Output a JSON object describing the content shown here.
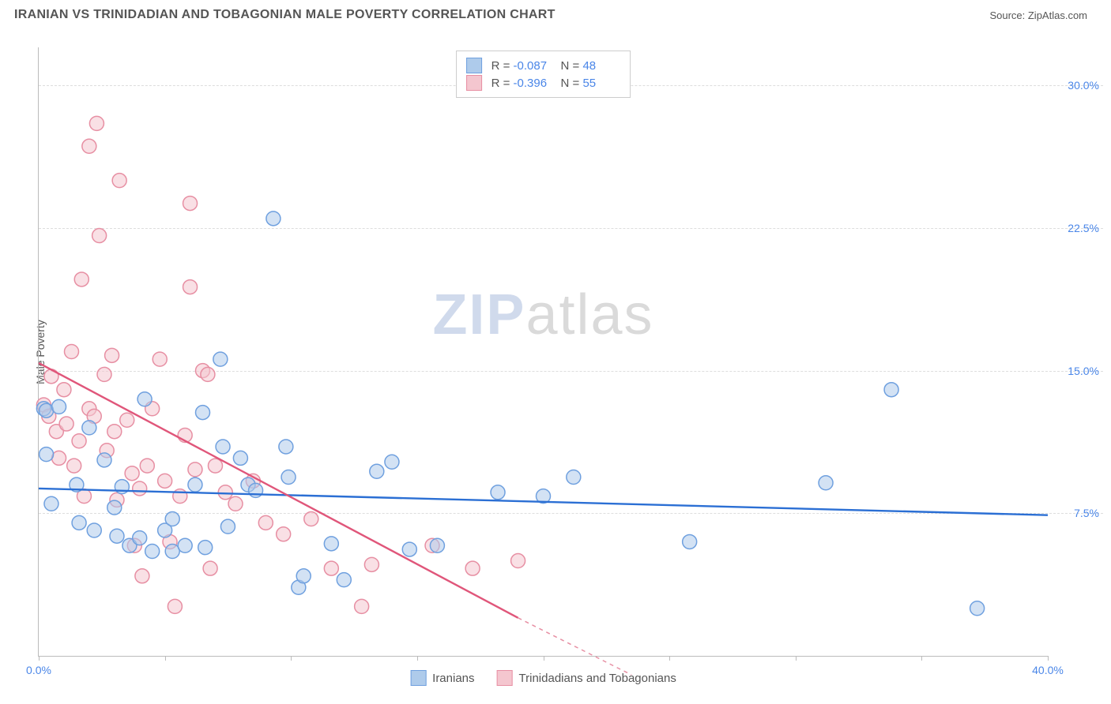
{
  "header": {
    "title": "IRANIAN VS TRINIDADIAN AND TOBAGONIAN MALE POVERTY CORRELATION CHART",
    "source": "Source: ZipAtlas.com"
  },
  "chart": {
    "type": "scatter",
    "ylabel": "Male Poverty",
    "xlim": [
      0,
      40
    ],
    "ylim": [
      0,
      32
    ],
    "xtick_positions": [
      0,
      5,
      10,
      15,
      20,
      25,
      30,
      35,
      40
    ],
    "xtick_labels": {
      "0": "0.0%",
      "40": "40.0%"
    },
    "ytick_positions": [
      7.5,
      15.0,
      22.5,
      30.0
    ],
    "ytick_labels": [
      "7.5%",
      "15.0%",
      "22.5%",
      "30.0%"
    ],
    "background_color": "#ffffff",
    "grid_color": "#dddddd",
    "axis_color": "#bbbbbb",
    "tick_label_color": "#4a86e8",
    "marker_radius": 9,
    "marker_stroke_width": 1.5,
    "series": [
      {
        "name": "Iranians",
        "fill": "#aecbeb",
        "stroke": "#6fa0df",
        "fill_opacity": 0.55,
        "trend_color": "#2b6fd4",
        "trend_width": 2.4,
        "R": "-0.087",
        "N": "48",
        "trend": {
          "x1": 0,
          "y1": 8.8,
          "x2": 40,
          "y2": 7.4
        },
        "points": [
          [
            0.2,
            13.0
          ],
          [
            0.3,
            12.9
          ],
          [
            0.3,
            10.6
          ],
          [
            0.5,
            8.0
          ],
          [
            0.8,
            13.1
          ],
          [
            1.5,
            9.0
          ],
          [
            1.6,
            7.0
          ],
          [
            2.0,
            12.0
          ],
          [
            2.2,
            6.6
          ],
          [
            2.6,
            10.3
          ],
          [
            3.0,
            7.8
          ],
          [
            3.1,
            6.3
          ],
          [
            3.3,
            8.9
          ],
          [
            3.6,
            5.8
          ],
          [
            4.0,
            6.2
          ],
          [
            4.2,
            13.5
          ],
          [
            4.5,
            5.5
          ],
          [
            5.0,
            6.6
          ],
          [
            5.3,
            7.2
          ],
          [
            5.3,
            5.5
          ],
          [
            5.8,
            5.8
          ],
          [
            6.2,
            9.0
          ],
          [
            6.5,
            12.8
          ],
          [
            6.6,
            5.7
          ],
          [
            7.2,
            15.6
          ],
          [
            7.3,
            11.0
          ],
          [
            7.5,
            6.8
          ],
          [
            8.0,
            10.4
          ],
          [
            8.3,
            9.0
          ],
          [
            8.6,
            8.7
          ],
          [
            9.3,
            23.0
          ],
          [
            9.8,
            11.0
          ],
          [
            9.9,
            9.4
          ],
          [
            10.3,
            3.6
          ],
          [
            10.5,
            4.2
          ],
          [
            11.6,
            5.9
          ],
          [
            12.1,
            4.0
          ],
          [
            13.4,
            9.7
          ],
          [
            14.0,
            10.2
          ],
          [
            14.7,
            5.6
          ],
          [
            15.8,
            5.8
          ],
          [
            18.2,
            8.6
          ],
          [
            20.0,
            8.4
          ],
          [
            21.2,
            9.4
          ],
          [
            25.8,
            6.0
          ],
          [
            31.2,
            9.1
          ],
          [
            33.8,
            14.0
          ],
          [
            37.2,
            2.5
          ]
        ]
      },
      {
        "name": "Trinidadians and Tobagonians",
        "fill": "#f4c6cf",
        "stroke": "#e78fa3",
        "fill_opacity": 0.55,
        "trend_color": "#e0567a",
        "trend_width": 2.4,
        "R": "-0.396",
        "N": "55",
        "trend": {
          "x1": 0,
          "y1": 15.4,
          "x2": 19,
          "y2": 2.0
        },
        "trend_dash": {
          "x1": 19,
          "y1": 2.0,
          "x2": 23.5,
          "y2": -1.0
        },
        "points": [
          [
            0.2,
            13.2
          ],
          [
            0.4,
            12.6
          ],
          [
            0.5,
            14.7
          ],
          [
            0.7,
            11.8
          ],
          [
            0.8,
            10.4
          ],
          [
            1.0,
            14.0
          ],
          [
            1.1,
            12.2
          ],
          [
            1.3,
            16.0
          ],
          [
            1.4,
            10.0
          ],
          [
            1.6,
            11.3
          ],
          [
            1.7,
            19.8
          ],
          [
            1.8,
            8.4
          ],
          [
            2.0,
            13.0
          ],
          [
            2.0,
            26.8
          ],
          [
            2.2,
            12.6
          ],
          [
            2.3,
            28.0
          ],
          [
            2.4,
            22.1
          ],
          [
            2.6,
            14.8
          ],
          [
            2.7,
            10.8
          ],
          [
            2.9,
            15.8
          ],
          [
            3.0,
            11.8
          ],
          [
            3.1,
            8.2
          ],
          [
            3.2,
            25.0
          ],
          [
            3.5,
            12.4
          ],
          [
            3.7,
            9.6
          ],
          [
            3.8,
            5.8
          ],
          [
            4.0,
            8.8
          ],
          [
            4.1,
            4.2
          ],
          [
            4.3,
            10.0
          ],
          [
            4.5,
            13.0
          ],
          [
            4.8,
            15.6
          ],
          [
            5.0,
            9.2
          ],
          [
            5.2,
            6.0
          ],
          [
            5.4,
            2.6
          ],
          [
            5.6,
            8.4
          ],
          [
            5.8,
            11.6
          ],
          [
            6.0,
            23.8
          ],
          [
            6.0,
            19.4
          ],
          [
            6.2,
            9.8
          ],
          [
            6.5,
            15.0
          ],
          [
            6.7,
            14.8
          ],
          [
            6.8,
            4.6
          ],
          [
            7.0,
            10.0
          ],
          [
            7.4,
            8.6
          ],
          [
            7.8,
            8.0
          ],
          [
            8.5,
            9.2
          ],
          [
            9.0,
            7.0
          ],
          [
            9.7,
            6.4
          ],
          [
            10.8,
            7.2
          ],
          [
            11.6,
            4.6
          ],
          [
            12.8,
            2.6
          ],
          [
            13.2,
            4.8
          ],
          [
            15.6,
            5.8
          ],
          [
            17.2,
            4.6
          ],
          [
            19.0,
            5.0
          ]
        ]
      }
    ],
    "bottom_legend": [
      "Iranians",
      "Trinidadians and Tobagonians"
    ],
    "watermark": {
      "a": "ZIP",
      "b": "atlas"
    }
  }
}
